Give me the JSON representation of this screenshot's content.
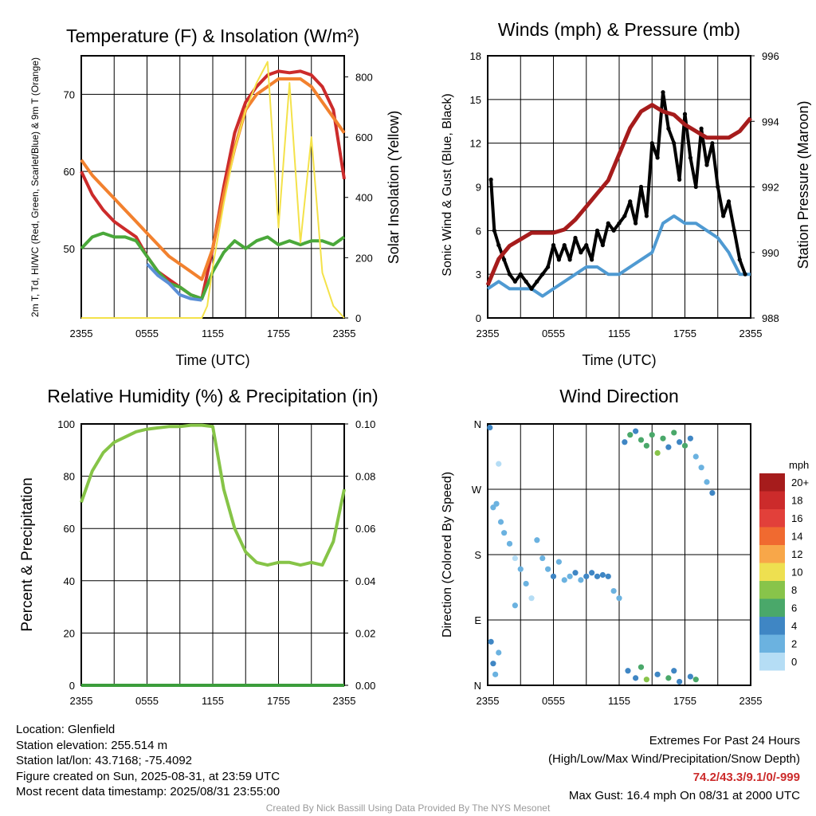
{
  "chart_data": [
    {
      "type": "line",
      "title": "Temperature (F) & Insolation (W/m²)",
      "xlabel": "Time (UTC)",
      "ylabel": "2m T, Td, HI/WC (Red, Green, Scarlet/Blue) & 9m T (Orange)",
      "ylabel_right": "Solar Insolation (Yellow)",
      "x_ticks": [
        "2355",
        "0555",
        "1155",
        "1755",
        "2355"
      ],
      "ylim": [
        41,
        75
      ],
      "y_ticks": [
        50,
        60,
        70
      ],
      "ylim_right": [
        0,
        870
      ],
      "y_ticks_right": [
        0,
        200,
        400,
        600,
        800
      ],
      "grid": true,
      "series": [
        {
          "name": "2m T",
          "color": "#cc2b2b",
          "axis": "left",
          "x": [
            0,
            1,
            2,
            3,
            4,
            5,
            6,
            7,
            8,
            9,
            10,
            11,
            12,
            13,
            14,
            15,
            16,
            17,
            18,
            19,
            20,
            21,
            22,
            23,
            24
          ],
          "values": [
            60,
            57,
            55,
            53.5,
            52.5,
            51.5,
            49,
            47,
            46,
            45,
            44,
            43.5,
            50,
            58,
            65,
            69,
            71,
            72.5,
            73,
            72.8,
            73,
            72.5,
            71,
            68,
            59
          ]
        },
        {
          "name": "9m T",
          "color": "#f2812e",
          "axis": "left",
          "x": [
            0,
            1,
            2,
            3,
            4,
            5,
            6,
            7,
            8,
            9,
            10,
            11,
            12,
            13,
            14,
            15,
            16,
            17,
            18,
            19,
            20,
            21,
            22,
            23,
            24
          ],
          "values": [
            61.5,
            59.5,
            58,
            56.5,
            55,
            53.5,
            52,
            50.5,
            49,
            48,
            47,
            46,
            50,
            57,
            63,
            68,
            70,
            71,
            72,
            72,
            72,
            71,
            69,
            67,
            65
          ]
        },
        {
          "name": "Td",
          "color": "#4aa83a",
          "axis": "left",
          "x": [
            0,
            1,
            2,
            3,
            4,
            5,
            6,
            7,
            8,
            9,
            10,
            11,
            12,
            13,
            14,
            15,
            16,
            17,
            18,
            19,
            20,
            21,
            22,
            23,
            24
          ],
          "values": [
            50,
            51.5,
            52,
            51.5,
            51.5,
            51,
            49,
            47,
            45.5,
            45,
            44,
            43.5,
            47,
            49.5,
            51,
            50,
            51,
            51.5,
            50.5,
            51,
            50.5,
            51,
            51,
            50.5,
            51.5
          ]
        },
        {
          "name": "HI/WC",
          "color": "#5b8fd6",
          "axis": "left",
          "x": [
            6,
            7,
            8,
            9,
            10,
            11
          ],
          "values": [
            48,
            46.5,
            45.5,
            44,
            43.5,
            43.3
          ]
        },
        {
          "name": "Solar Insolation",
          "color": "#f4e24a",
          "axis": "right",
          "x": [
            0,
            1,
            2,
            3,
            4,
            5,
            6,
            7,
            8,
            9,
            10,
            11,
            11.5,
            12,
            13,
            14,
            15,
            16,
            17,
            18,
            19,
            20,
            21,
            22,
            23,
            24
          ],
          "values": [
            0,
            0,
            0,
            0,
            0,
            0,
            0,
            0,
            0,
            0,
            0,
            0,
            40,
            170,
            380,
            560,
            690,
            780,
            850,
            300,
            780,
            250,
            600,
            150,
            40,
            0
          ]
        }
      ]
    },
    {
      "type": "line",
      "title": "Winds (mph) & Pressure (mb)",
      "xlabel": "Time (UTC)",
      "ylabel": "Sonic Wind & Gust (Blue, Black)",
      "ylabel_right": "Station Pressure (Maroon)",
      "x_ticks": [
        "2355",
        "0555",
        "1155",
        "1755",
        "2355"
      ],
      "ylim": [
        0,
        18
      ],
      "y_ticks": [
        0,
        3,
        6,
        9,
        12,
        15,
        18
      ],
      "ylim_right": [
        988,
        996
      ],
      "y_ticks_right": [
        988,
        990,
        992,
        994,
        996
      ],
      "grid": true,
      "series": [
        {
          "name": "Sonic Wind",
          "color": "#4f9ad2",
          "axis": "left",
          "x": [
            0,
            1,
            2,
            3,
            4,
            5,
            6,
            7,
            8,
            9,
            10,
            11,
            12,
            13,
            14,
            15,
            16,
            17,
            18,
            19,
            20,
            21,
            22,
            23,
            24
          ],
          "values": [
            2,
            2.5,
            2,
            2,
            2,
            1.5,
            2,
            2.5,
            3,
            3.5,
            3.5,
            3,
            3,
            3.5,
            4,
            4.5,
            6.5,
            7,
            6.5,
            6.5,
            6,
            5.5,
            4.5,
            3,
            3
          ]
        },
        {
          "name": "Gust",
          "color": "#000000",
          "axis": "left",
          "x": [
            0.3,
            0.6,
            1,
            1.5,
            2,
            2.5,
            3,
            3.5,
            4,
            4.5,
            5,
            5.5,
            6,
            6.5,
            7,
            7.5,
            8,
            8.5,
            9,
            9.5,
            10,
            10.5,
            11,
            11.5,
            12,
            12.5,
            13,
            13.5,
            14,
            14.5,
            15,
            15.5,
            16,
            16.5,
            17,
            17.5,
            18,
            18.5,
            19,
            19.5,
            20,
            20.5,
            21,
            21.5,
            22,
            22.5,
            23,
            23.5
          ],
          "values": [
            9.5,
            6,
            5,
            4,
            3,
            2.5,
            3,
            2.5,
            2,
            2.5,
            3,
            3.5,
            5,
            4,
            5,
            4,
            5.5,
            4.5,
            5,
            4,
            6,
            5,
            6.5,
            6,
            6.5,
            7,
            8,
            6.5,
            9,
            7,
            12,
            11,
            15.5,
            13,
            12,
            9.5,
            14,
            11,
            9,
            13,
            10.5,
            12,
            9,
            7,
            8,
            6,
            4,
            3
          ]
        },
        {
          "name": "Station Pressure",
          "color": "#a61c1c",
          "axis": "right",
          "x": [
            0,
            1,
            2,
            3,
            4,
            5,
            6,
            7,
            8,
            9,
            10,
            11,
            12,
            13,
            14,
            15,
            16,
            17,
            18,
            19,
            20,
            21,
            22,
            23,
            24
          ],
          "values": [
            989,
            989.8,
            990.2,
            990.4,
            990.6,
            990.6,
            990.6,
            990.7,
            991,
            991.4,
            991.8,
            992.2,
            993,
            993.8,
            994.3,
            994.5,
            994.3,
            994.2,
            993.9,
            993.7,
            993.5,
            993.5,
            993.5,
            993.7,
            994.1
          ]
        }
      ]
    },
    {
      "type": "line",
      "title": "Relative Humidity (%) & Precipitation (in)",
      "xlabel": "",
      "ylabel": "Percent & Precipitation",
      "x_ticks": [
        "2355",
        "0555",
        "1155",
        "1755",
        "2355"
      ],
      "ylim": [
        0,
        100
      ],
      "y_ticks": [
        0,
        20,
        40,
        60,
        80,
        100
      ],
      "ylim_right": [
        0,
        0.1
      ],
      "y_ticks_right": [
        "0.00",
        "0.02",
        "0.04",
        "0.06",
        "0.08",
        "0.10"
      ],
      "grid": true,
      "series": [
        {
          "name": "Relative Humidity",
          "color": "#86c447",
          "axis": "left",
          "x": [
            0,
            1,
            2,
            3,
            4,
            5,
            6,
            7,
            8,
            9,
            10,
            11,
            12,
            13,
            14,
            15,
            16,
            17,
            18,
            19,
            20,
            21,
            22,
            23,
            24
          ],
          "values": [
            70,
            82,
            89,
            93,
            95,
            97,
            98,
            98.5,
            99,
            99,
            99.5,
            99.5,
            99,
            75,
            60,
            51,
            47,
            46,
            47,
            47,
            46,
            47,
            46,
            55,
            75
          ]
        },
        {
          "name": "Precipitation",
          "color": "#3b9d3b",
          "axis": "right",
          "x": [
            0,
            24
          ],
          "values": [
            0,
            0
          ]
        }
      ]
    },
    {
      "type": "scatter",
      "title": "Wind Direction",
      "ylabel": "Direction (Colored By Speed)",
      "x_ticks": [
        "2355",
        "0555",
        "1155",
        "1755",
        "2355"
      ],
      "y_ticks": [
        "N",
        "E",
        "S",
        "W",
        "N"
      ],
      "ylim": [
        0,
        360
      ],
      "grid": true,
      "legend": {
        "title": "mph",
        "labels": [
          "20+",
          "18",
          "16",
          "14",
          "12",
          "10",
          "8",
          "6",
          "4",
          "2",
          "0"
        ],
        "colors": [
          "#a61c1c",
          "#cc2b2b",
          "#e2403a",
          "#f06a30",
          "#f8a749",
          "#eee050",
          "#88c44a",
          "#4aa86a",
          "#3f86c4",
          "#6bb2e0",
          "#b5ddf5"
        ]
      },
      "points": [
        {
          "x": 0.2,
          "y": 355,
          "c": "#3f86c4"
        },
        {
          "x": 0.5,
          "y": 245,
          "c": "#6bb2e0"
        },
        {
          "x": 0.8,
          "y": 250,
          "c": "#6bb2e0"
        },
        {
          "x": 1.0,
          "y": 305,
          "c": "#b5ddf5"
        },
        {
          "x": 0.3,
          "y": 60,
          "c": "#3f86c4"
        },
        {
          "x": 0.5,
          "y": 30,
          "c": "#3f86c4"
        },
        {
          "x": 0.7,
          "y": 15,
          "c": "#6bb2e0"
        },
        {
          "x": 1.0,
          "y": 45,
          "c": "#6bb2e0"
        },
        {
          "x": 1.2,
          "y": 225,
          "c": "#6bb2e0"
        },
        {
          "x": 1.5,
          "y": 210,
          "c": "#6bb2e0"
        },
        {
          "x": 2.0,
          "y": 195,
          "c": "#6bb2e0"
        },
        {
          "x": 2.5,
          "y": 175,
          "c": "#b5ddf5"
        },
        {
          "x": 2.5,
          "y": 110,
          "c": "#6bb2e0"
        },
        {
          "x": 3.0,
          "y": 160,
          "c": "#6bb2e0"
        },
        {
          "x": 3.5,
          "y": 140,
          "c": "#6bb2e0"
        },
        {
          "x": 4.0,
          "y": 120,
          "c": "#b5ddf5"
        },
        {
          "x": 4.5,
          "y": 200,
          "c": "#6bb2e0"
        },
        {
          "x": 5.0,
          "y": 175,
          "c": "#6bb2e0"
        },
        {
          "x": 5.5,
          "y": 160,
          "c": "#6bb2e0"
        },
        {
          "x": 6.0,
          "y": 150,
          "c": "#3f86c4"
        },
        {
          "x": 6.5,
          "y": 170,
          "c": "#6bb2e0"
        },
        {
          "x": 7.0,
          "y": 145,
          "c": "#6bb2e0"
        },
        {
          "x": 7.5,
          "y": 150,
          "c": "#6bb2e0"
        },
        {
          "x": 8.0,
          "y": 155,
          "c": "#3f86c4"
        },
        {
          "x": 8.5,
          "y": 145,
          "c": "#6bb2e0"
        },
        {
          "x": 9.0,
          "y": 150,
          "c": "#3f86c4"
        },
        {
          "x": 9.5,
          "y": 155,
          "c": "#3f86c4"
        },
        {
          "x": 10.0,
          "y": 150,
          "c": "#3f86c4"
        },
        {
          "x": 10.5,
          "y": 152,
          "c": "#3f86c4"
        },
        {
          "x": 11.0,
          "y": 150,
          "c": "#3f86c4"
        },
        {
          "x": 11.5,
          "y": 130,
          "c": "#6bb2e0"
        },
        {
          "x": 12.0,
          "y": 120,
          "c": "#6bb2e0"
        },
        {
          "x": 12.5,
          "y": 335,
          "c": "#3f86c4"
        },
        {
          "x": 13.0,
          "y": 345,
          "c": "#4aa86a"
        },
        {
          "x": 13.5,
          "y": 350,
          "c": "#3f86c4"
        },
        {
          "x": 14.0,
          "y": 338,
          "c": "#4aa86a"
        },
        {
          "x": 14.5,
          "y": 330,
          "c": "#4aa86a"
        },
        {
          "x": 15.0,
          "y": 345,
          "c": "#4aa86a"
        },
        {
          "x": 15.5,
          "y": 320,
          "c": "#88c44a"
        },
        {
          "x": 16.0,
          "y": 340,
          "c": "#4aa86a"
        },
        {
          "x": 16.5,
          "y": 328,
          "c": "#3f86c4"
        },
        {
          "x": 17.0,
          "y": 348,
          "c": "#4aa86a"
        },
        {
          "x": 17.5,
          "y": 335,
          "c": "#3f86c4"
        },
        {
          "x": 18.0,
          "y": 330,
          "c": "#4aa86a"
        },
        {
          "x": 18.5,
          "y": 340,
          "c": "#3f86c4"
        },
        {
          "x": 19.0,
          "y": 315,
          "c": "#6bb2e0"
        },
        {
          "x": 19.5,
          "y": 300,
          "c": "#6bb2e0"
        },
        {
          "x": 20.0,
          "y": 280,
          "c": "#6bb2e0"
        },
        {
          "x": 20.5,
          "y": 265,
          "c": "#3f86c4"
        },
        {
          "x": 12.8,
          "y": 20,
          "c": "#3f86c4"
        },
        {
          "x": 13.5,
          "y": 10,
          "c": "#3f86c4"
        },
        {
          "x": 14.0,
          "y": 25,
          "c": "#4aa86a"
        },
        {
          "x": 14.5,
          "y": 8,
          "c": "#88c44a"
        },
        {
          "x": 15.5,
          "y": 15,
          "c": "#3f86c4"
        },
        {
          "x": 16.5,
          "y": 10,
          "c": "#4aa86a"
        },
        {
          "x": 17.0,
          "y": 20,
          "c": "#3f86c4"
        },
        {
          "x": 17.5,
          "y": 5,
          "c": "#3f86c4"
        },
        {
          "x": 18.5,
          "y": 12,
          "c": "#3f86c4"
        },
        {
          "x": 19.0,
          "y": 8,
          "c": "#4aa86a"
        }
      ]
    }
  ],
  "footer": {
    "location": "Location: Glenfield",
    "elevation": "Station elevation: 255.514 m",
    "latlon": "Station lat/lon: 43.7168; -75.4092",
    "created": "Figure created on Sun, 2025-08-31, at 23:59 UTC",
    "recent": "Most recent data timestamp: 2025/08/31 23:55:00"
  },
  "extremes": {
    "title": "Extremes For Past 24 Hours",
    "subtitle": "(High/Low/Max Wind/Precipitation/Snow Depth)",
    "values": "74.2/43.3/9.1/0/-999",
    "max_gust": "Max Gust: 16.4 mph On 08/31 at 2000 UTC"
  },
  "credit": "Created By Nick Bassill Using Data Provided By The NYS Mesonet"
}
